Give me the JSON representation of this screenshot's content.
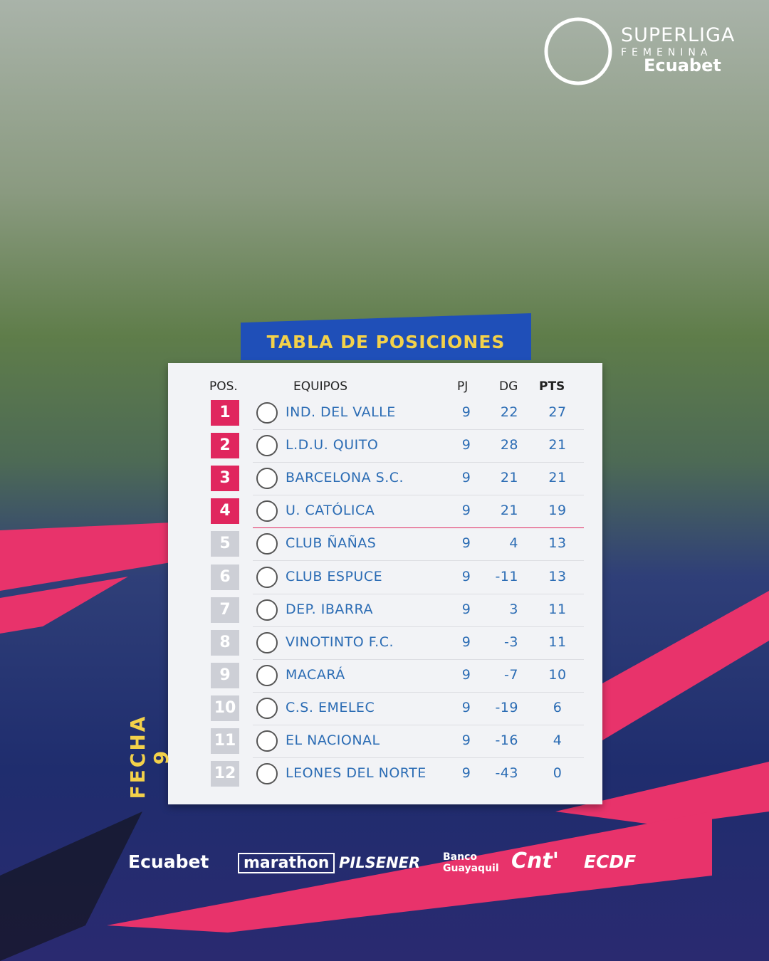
{
  "brand": {
    "line1": "SUPERLIGA",
    "line2": "FEMENINA",
    "line3": "Ecuabet"
  },
  "title": "TABLA DE POSICIONES",
  "round": "FECHA 9",
  "table": {
    "columns": [
      "POS.",
      "EQUIPOS",
      "PJ",
      "DG",
      "PTS"
    ],
    "rows": [
      [
        1,
        "IND. DEL VALLE",
        9,
        22,
        27
      ],
      [
        2,
        "L.D.U. QUITO",
        9,
        28,
        21
      ],
      [
        3,
        "BARCELONA S.C.",
        9,
        21,
        21
      ],
      [
        4,
        "U. CATÓLICA",
        9,
        21,
        19
      ],
      [
        5,
        "CLUB ÑAÑAS",
        9,
        4,
        13
      ],
      [
        6,
        "CLUB ESPUCE",
        9,
        -11,
        13
      ],
      [
        7,
        "DEP. IBARRA",
        9,
        3,
        11
      ],
      [
        8,
        "VINOTINTO F.C.",
        9,
        -3,
        11
      ],
      [
        9,
        "MACARÁ",
        9,
        -7,
        10
      ],
      [
        10,
        "C.S. EMELEC",
        9,
        -19,
        6
      ],
      [
        11,
        "EL NACIONAL",
        9,
        -16,
        4
      ],
      [
        12,
        "LEONES DEL NORTE",
        9,
        -43,
        0
      ]
    ]
  },
  "sponsors": [
    "Ecuabet",
    "marathon",
    "PILSENER",
    "Banco",
    "Guayaquil",
    "Cnt'",
    "ECDF"
  ]
}
